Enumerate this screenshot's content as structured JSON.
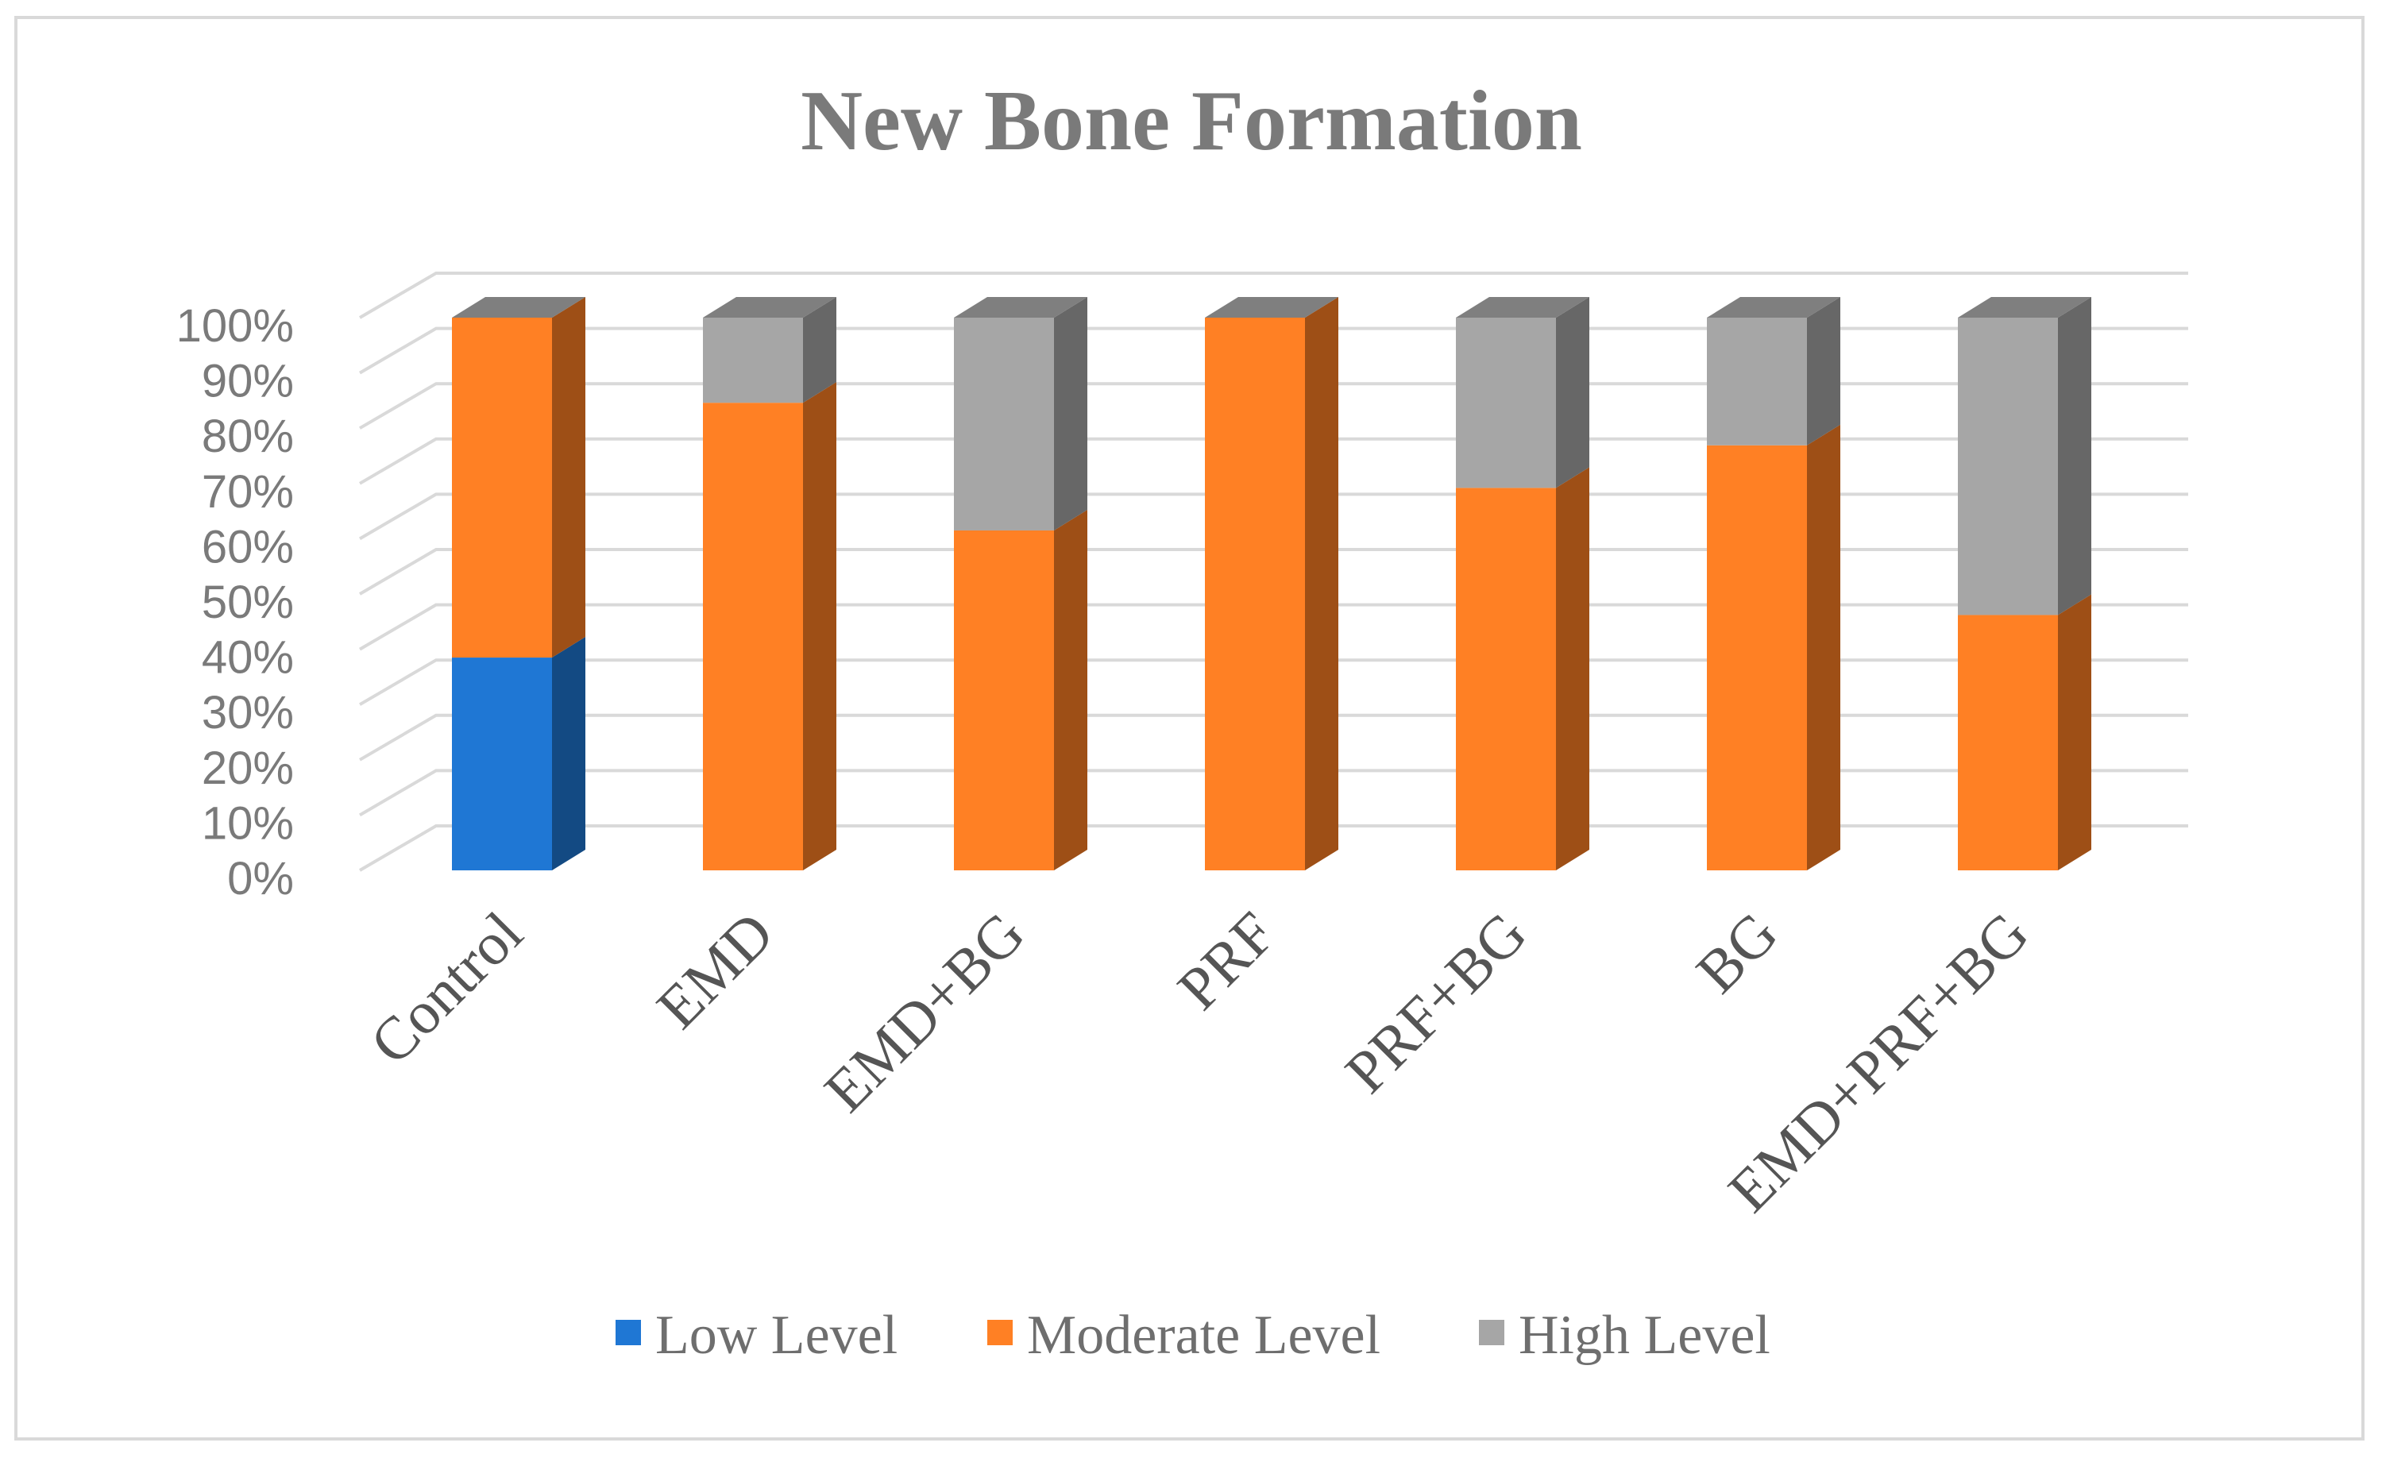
{
  "chart_data": {
    "type": "bar",
    "stacked": true,
    "three_d": true,
    "title": "New Bone Formation",
    "xlabel": "",
    "ylabel": "",
    "ylim": [
      0,
      100
    ],
    "yticks": [
      "0%",
      "10%",
      "20%",
      "30%",
      "40%",
      "50%",
      "60%",
      "70%",
      "80%",
      "90%",
      "100%"
    ],
    "categories": [
      "Control",
      "EMD",
      "EMD+BG",
      "PRF",
      "PRF+BG",
      "BG",
      "EMD+PRF+BG"
    ],
    "series": [
      {
        "name": "Low Level",
        "color": "#1f77d4",
        "values": [
          38.5,
          0,
          0,
          0,
          0,
          0,
          0
        ]
      },
      {
        "name": "Moderate Level",
        "color": "#ff8024",
        "values": [
          61.5,
          84.6,
          61.5,
          100,
          69.2,
          76.9,
          46.2
        ]
      },
      {
        "name": "High Level",
        "color": "#a6a6a6",
        "values": [
          0,
          15.4,
          38.5,
          0,
          30.8,
          23.1,
          53.8
        ]
      }
    ],
    "grid": true,
    "legend_position": "bottom"
  }
}
